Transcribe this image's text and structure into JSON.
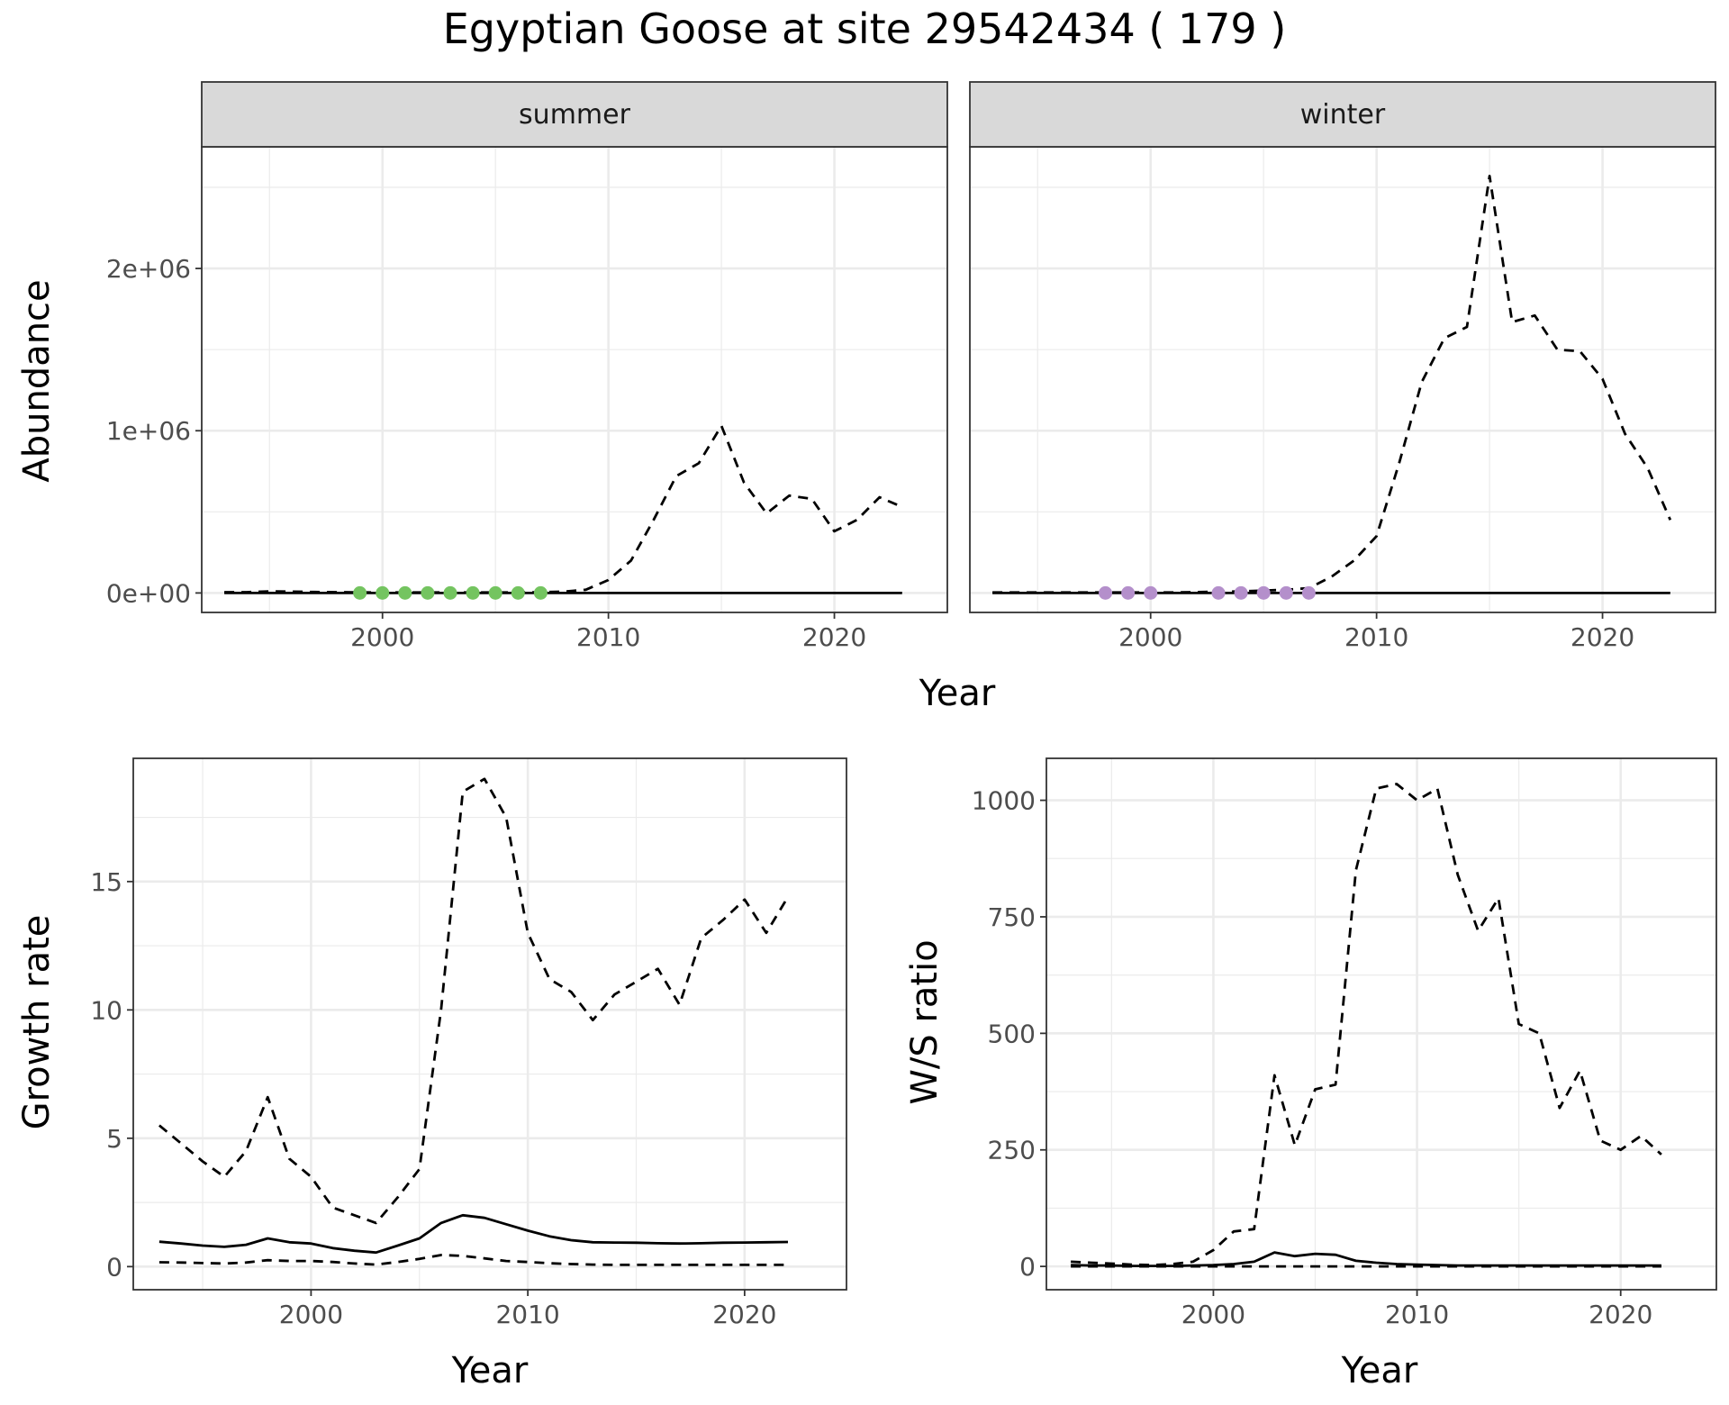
{
  "title": "Egyptian Goose at site 29542434 ( 179 )",
  "colors": {
    "summer_point": "#74c460",
    "winter_point": "#b48fcb",
    "line": "#000000",
    "strip_bg": "#d9d9d9",
    "grid": "#ebebeb"
  },
  "chart_data": [
    {
      "id": "abundance",
      "type": "line",
      "facets": [
        "summer",
        "winter"
      ],
      "xlabel": "Year",
      "ylabel": "Abundance",
      "xlim": [
        1992,
        2025
      ],
      "ylim": [
        -120000,
        2750000
      ],
      "xticks": [
        2000,
        2010,
        2020
      ],
      "yticks": [
        0,
        1000000,
        2000000
      ],
      "ytick_labels": [
        "0e+00",
        "1e+06",
        "2e+06"
      ],
      "grid": true,
      "panels": [
        {
          "facet": "summer",
          "x": [
            1993,
            1994,
            1995,
            1996,
            1997,
            1998,
            1999,
            2000,
            2001,
            2002,
            2003,
            2004,
            2005,
            2006,
            2007,
            2008,
            2009,
            2010,
            2011,
            2012,
            2013,
            2014,
            2015,
            2016,
            2017,
            2018,
            2019,
            2020,
            2021,
            2022,
            2023
          ],
          "series": [
            {
              "style": "solid",
              "values": [
                0,
                0,
                0,
                0,
                0,
                0,
                0,
                0,
                0,
                0,
                0,
                0,
                0,
                0,
                0,
                0,
                0,
                0,
                0,
                0,
                0,
                0,
                0,
                0,
                0,
                0,
                0,
                0,
                0,
                0,
                0
              ]
            },
            {
              "style": "dashed",
              "values": [
                5000,
                5000,
                10000,
                8000,
                6000,
                5000,
                4000,
                3000,
                3000,
                3000,
                3000,
                3000,
                3000,
                3000,
                5000,
                8000,
                20000,
                80000,
                200000,
                450000,
                720000,
                800000,
                1030000,
                680000,
                490000,
                600000,
                580000,
                380000,
                450000,
                590000,
                530000
              ]
            }
          ],
          "points": {
            "color": "#74c460",
            "x": [
              1999,
              2000,
              2001,
              2002,
              2003,
              2004,
              2005,
              2006,
              2007
            ],
            "y": [
              0,
              0,
              0,
              0,
              0,
              0,
              0,
              0,
              0
            ]
          }
        },
        {
          "facet": "winter",
          "x": [
            1993,
            1994,
            1995,
            1996,
            1997,
            1998,
            1999,
            2000,
            2001,
            2002,
            2003,
            2004,
            2005,
            2006,
            2007,
            2008,
            2009,
            2010,
            2011,
            2012,
            2013,
            2014,
            2015,
            2016,
            2017,
            2018,
            2019,
            2020,
            2021,
            2022,
            2023
          ],
          "series": [
            {
              "style": "solid",
              "values": [
                0,
                0,
                0,
                0,
                0,
                0,
                0,
                0,
                0,
                0,
                0,
                0,
                0,
                0,
                0,
                0,
                0,
                0,
                0,
                0,
                0,
                0,
                0,
                0,
                0,
                0,
                0,
                0,
                0,
                0,
                0
              ]
            },
            {
              "style": "dashed",
              "values": [
                3000,
                3000,
                3000,
                3000,
                3000,
                3000,
                3000,
                3000,
                3000,
                5000,
                8000,
                10000,
                15000,
                20000,
                30000,
                100000,
                200000,
                350000,
                800000,
                1300000,
                1570000,
                1640000,
                2570000,
                1670000,
                1710000,
                1500000,
                1490000,
                1320000,
                980000,
                770000,
                450000
              ]
            }
          ],
          "points": {
            "color": "#b48fcb",
            "x": [
              1998,
              1999,
              2000,
              2003,
              2004,
              2005,
              2006,
              2007
            ],
            "y": [
              0,
              0,
              0,
              0,
              0,
              0,
              0,
              0
            ]
          }
        }
      ]
    },
    {
      "id": "growth",
      "type": "line",
      "xlabel": "Year",
      "ylabel": "Growth rate",
      "xlim": [
        1991.8,
        2024.7
      ],
      "ylim": [
        -0.9,
        19.8
      ],
      "xticks": [
        2000,
        2010,
        2020
      ],
      "yticks": [
        0,
        5,
        10,
        15
      ],
      "ytick_labels": [
        "0",
        "5",
        "10",
        "15"
      ],
      "grid": true,
      "x": [
        1993,
        1994,
        1995,
        1996,
        1997,
        1998,
        1999,
        2000,
        2001,
        2002,
        2003,
        2004,
        2005,
        2006,
        2007,
        2008,
        2009,
        2010,
        2011,
        2012,
        2013,
        2014,
        2015,
        2016,
        2017,
        2018,
        2019,
        2020,
        2021,
        2022
      ],
      "series": [
        {
          "style": "dashed-upper",
          "values": [
            5.5,
            4.8,
            4.1,
            3.5,
            4.5,
            6.6,
            4.2,
            3.5,
            2.3,
            2.0,
            1.7,
            2.7,
            3.8,
            10.0,
            18.5,
            19.0,
            17.5,
            13.0,
            11.2,
            10.7,
            9.6,
            10.6,
            11.1,
            11.6,
            10.2,
            12.8,
            13.5,
            14.3,
            13.0,
            14.4
          ]
        },
        {
          "style": "solid",
          "values": [
            0.97,
            0.9,
            0.82,
            0.77,
            0.85,
            1.1,
            0.95,
            0.9,
            0.72,
            0.62,
            0.55,
            0.82,
            1.1,
            1.7,
            2.0,
            1.9,
            1.65,
            1.4,
            1.18,
            1.03,
            0.95,
            0.94,
            0.93,
            0.91,
            0.9,
            0.91,
            0.93,
            0.94,
            0.95,
            0.96
          ]
        },
        {
          "style": "dashed-lower",
          "values": [
            0.17,
            0.16,
            0.14,
            0.12,
            0.16,
            0.25,
            0.22,
            0.22,
            0.18,
            0.12,
            0.08,
            0.18,
            0.3,
            0.45,
            0.42,
            0.32,
            0.22,
            0.18,
            0.13,
            0.1,
            0.08,
            0.07,
            0.07,
            0.07,
            0.07,
            0.07,
            0.07,
            0.07,
            0.07,
            0.07
          ]
        }
      ]
    },
    {
      "id": "ratio",
      "type": "line",
      "xlabel": "Year",
      "ylabel": "W/S ratio",
      "xlim": [
        1991.8,
        2024.7
      ],
      "ylim": [
        -50,
        1090
      ],
      "xticks": [
        2000,
        2010,
        2020
      ],
      "yticks": [
        0,
        250,
        500,
        750,
        1000
      ],
      "ytick_labels": [
        "0",
        "250",
        "500",
        "750",
        "1000"
      ],
      "grid": true,
      "x": [
        1993,
        1994,
        1995,
        1996,
        1997,
        1998,
        1999,
        2000,
        2001,
        2002,
        2003,
        2004,
        2005,
        2006,
        2007,
        2008,
        2009,
        2010,
        2011,
        2012,
        2013,
        2014,
        2015,
        2016,
        2017,
        2018,
        2019,
        2020,
        2021,
        2022
      ],
      "series": [
        {
          "style": "dashed-upper",
          "values": [
            10,
            8,
            6,
            4,
            3,
            5,
            10,
            35,
            75,
            80,
            410,
            260,
            380,
            390,
            850,
            1025,
            1035,
            1000,
            1025,
            840,
            720,
            790,
            520,
            500,
            340,
            420,
            270,
            250,
            280,
            240
          ]
        },
        {
          "style": "solid",
          "values": [
            3,
            2,
            2,
            1,
            1,
            1,
            2,
            3,
            5,
            10,
            30,
            22,
            27,
            25,
            12,
            8,
            5,
            4,
            3,
            2,
            2,
            2,
            2,
            2,
            2,
            2,
            2,
            2,
            2,
            2
          ]
        },
        {
          "style": "dashed-lower",
          "values": [
            0,
            0,
            0,
            0,
            0,
            0,
            0,
            0,
            0,
            0,
            0,
            0,
            0,
            0,
            0,
            0,
            0,
            0,
            0,
            0,
            0,
            0,
            0,
            0,
            0,
            0,
            0,
            0,
            0,
            0
          ]
        }
      ]
    }
  ]
}
